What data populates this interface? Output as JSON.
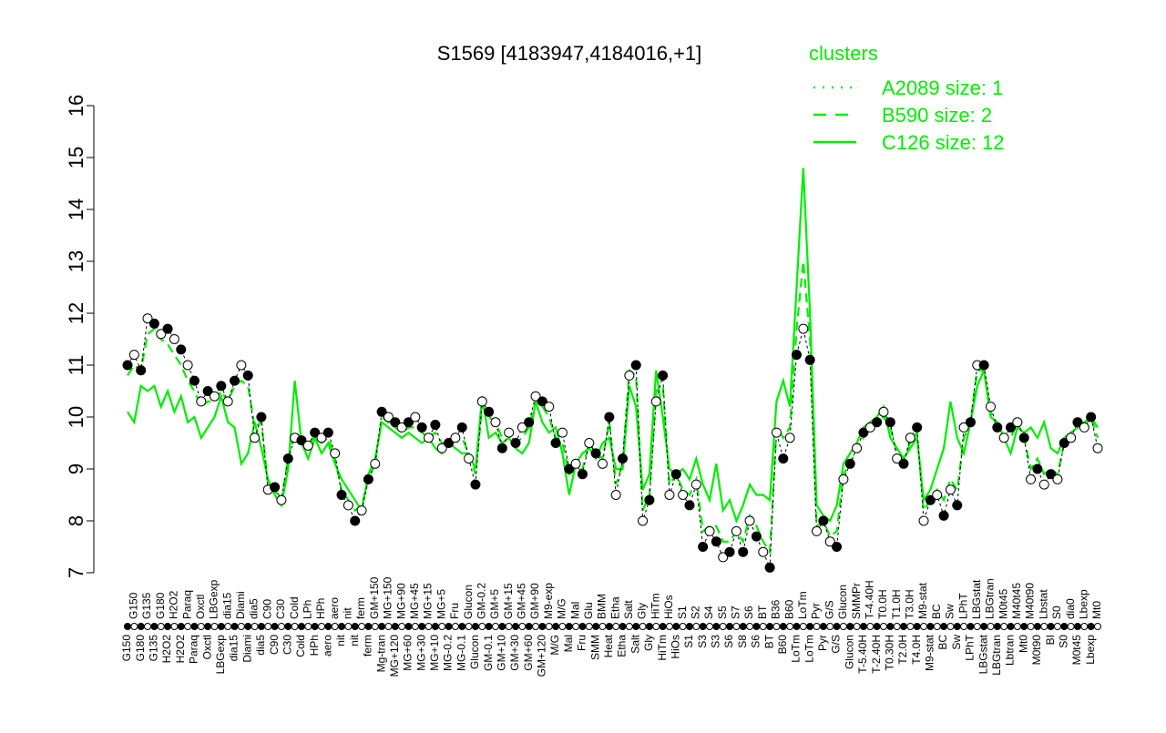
{
  "chart_data": {
    "type": "scatter",
    "title": "S1569 [4183947,4184016,+1]",
    "xlabel": "",
    "ylabel": "",
    "ylim": [
      7,
      16
    ],
    "yticks": [
      7,
      8,
      9,
      10,
      11,
      12,
      13,
      14,
      15,
      16
    ],
    "grid": false,
    "legend": {
      "placement": "top-right",
      "title": "clusters",
      "entries": [
        {
          "name": "A2089 size: 1",
          "style": "dotted"
        },
        {
          "name": "B590 size: 2",
          "style": "dashed"
        },
        {
          "name": "C126 size: 12",
          "style": "solid"
        }
      ]
    },
    "colors": {
      "points": "#000000",
      "clusters": "#00ee00"
    },
    "points": [
      {
        "label": "G150",
        "value": 11.0,
        "c126": 10.1,
        "b590": 10.8
      },
      {
        "label": "G150",
        "value": 11.2,
        "c126": 9.9,
        "b590": 11.0
      },
      {
        "label": "G180",
        "value": 10.9,
        "c126": 10.6,
        "b590": 10.9
      },
      {
        "label": "G135",
        "value": 11.9,
        "c126": 10.5,
        "b590": 11.6
      },
      {
        "label": "G135",
        "value": 11.8,
        "c126": 10.6,
        "b590": 11.7
      },
      {
        "label": "G180",
        "value": 11.6,
        "c126": 10.2,
        "b590": 11.5
      },
      {
        "label": "H2O2",
        "value": 11.7,
        "c126": 10.5,
        "b590": 11.4
      },
      {
        "label": "H2O2",
        "value": 11.5,
        "c126": 10.1,
        "b590": 11.2
      },
      {
        "label": "H2O2",
        "value": 11.3,
        "c126": 10.4,
        "b590": 11.0
      },
      {
        "label": "Paraq",
        "value": 11.0,
        "c126": 9.9,
        "b590": 10.7
      },
      {
        "label": "Paraq",
        "value": 10.7,
        "c126": 10.0,
        "b590": 10.5
      },
      {
        "label": "Oxctl",
        "value": 10.3,
        "c126": 9.6,
        "b590": 10.2
      },
      {
        "label": "Oxctl",
        "value": 10.5,
        "c126": 9.8,
        "b590": 10.3
      },
      {
        "label": "LBGexp",
        "value": 10.4,
        "c126": 10.0,
        "b590": 10.3
      },
      {
        "label": "LBGexp",
        "value": 10.6,
        "c126": 10.4,
        "b590": 10.5
      },
      {
        "label": "dia15",
        "value": 10.3,
        "c126": 9.9,
        "b590": 10.3
      },
      {
        "label": "dia15",
        "value": 10.7,
        "c126": 9.8,
        "b590": 10.6
      },
      {
        "label": "Diami",
        "value": 11.0,
        "c126": 9.1,
        "b590": 10.7
      },
      {
        "label": "Diami",
        "value": 10.8,
        "c126": 9.3,
        "b590": 10.6
      },
      {
        "label": "dia5",
        "value": 9.6,
        "c126": 9.9,
        "b590": 9.8
      },
      {
        "label": "dia5",
        "value": 10.0,
        "c126": 9.4,
        "b590": 9.9
      },
      {
        "label": "C90",
        "value": 8.6,
        "c126": 8.8,
        "b590": 8.7
      },
      {
        "label": "C90",
        "value": 8.65,
        "c126": 8.5,
        "b590": 8.6
      },
      {
        "label": "C30",
        "value": 8.4,
        "c126": 8.3,
        "b590": 8.4
      },
      {
        "label": "C30",
        "value": 9.2,
        "c126": 9.0,
        "b590": 9.2
      },
      {
        "label": "Cold",
        "value": 9.6,
        "c126": 10.7,
        "b590": 9.7
      },
      {
        "label": "Cold",
        "value": 9.55,
        "c126": 9.5,
        "b590": 9.6
      },
      {
        "label": "LPh",
        "value": 9.45,
        "c126": 9.2,
        "b590": 9.5
      },
      {
        "label": "HPh",
        "value": 9.7,
        "c126": 9.6,
        "b590": 9.6
      },
      {
        "label": "HPh",
        "value": 9.6,
        "c126": 9.3,
        "b590": 9.5
      },
      {
        "label": "aero",
        "value": 9.7,
        "c126": 9.5,
        "b590": 9.6
      },
      {
        "label": "aero",
        "value": 9.3,
        "c126": 9.1,
        "b590": 9.2
      },
      {
        "label": "nit",
        "value": 8.5,
        "c126": 8.8,
        "b590": 8.6
      },
      {
        "label": "nit",
        "value": 8.3,
        "c126": 8.6,
        "b590": 8.4
      },
      {
        "label": "nit",
        "value": 8.0,
        "c126": 8.4,
        "b590": 8.2
      },
      {
        "label": "ferm",
        "value": 8.2,
        "c126": 8.2,
        "b590": 8.3
      },
      {
        "label": "ferm",
        "value": 8.8,
        "c126": 8.9,
        "b590": 8.8
      },
      {
        "label": "GM+150",
        "value": 9.1,
        "c126": 9.2,
        "b590": 9.1
      },
      {
        "label": "Mg-tran",
        "value": 10.1,
        "c126": 9.9,
        "b590": 10.0
      },
      {
        "label": "MG+150",
        "value": 10.0,
        "c126": 9.8,
        "b590": 9.9
      },
      {
        "label": "MG+120",
        "value": 9.9,
        "c126": 9.7,
        "b590": 9.8
      },
      {
        "label": "MG+90",
        "value": 9.8,
        "c126": 9.6,
        "b590": 9.7
      },
      {
        "label": "MG+60",
        "value": 9.9,
        "c126": 9.7,
        "b590": 9.8
      },
      {
        "label": "MG+45",
        "value": 10.0,
        "c126": 9.6,
        "b590": 9.8
      },
      {
        "label": "MG+30",
        "value": 9.8,
        "c126": 9.5,
        "b590": 9.7
      },
      {
        "label": "MG+15",
        "value": 9.6,
        "c126": 9.6,
        "b590": 9.6
      },
      {
        "label": "MG+10",
        "value": 9.85,
        "c126": 9.4,
        "b590": 9.7
      },
      {
        "label": "MG+5",
        "value": 9.4,
        "c126": 9.3,
        "b590": 9.5
      },
      {
        "label": "MG-0.2",
        "value": 9.5,
        "c126": 9.5,
        "b590": 9.5
      },
      {
        "label": "Fru",
        "value": 9.6,
        "c126": 9.4,
        "b590": 9.6
      },
      {
        "label": "MG-0.1",
        "value": 9.8,
        "c126": 9.3,
        "b590": 9.6
      },
      {
        "label": "Glucon",
        "value": 9.2,
        "c126": 9.3,
        "b590": 9.3
      },
      {
        "label": "Glucon",
        "value": 8.7,
        "c126": 9.0,
        "b590": 8.9
      },
      {
        "label": "GM-0.2",
        "value": 10.3,
        "c126": 10.4,
        "b590": 10.2
      },
      {
        "label": "GM-0.1",
        "value": 10.1,
        "c126": 9.6,
        "b590": 10.0
      },
      {
        "label": "GM+5",
        "value": 9.9,
        "c126": 9.7,
        "b590": 9.9
      },
      {
        "label": "GM+10",
        "value": 9.4,
        "c126": 9.5,
        "b590": 9.6
      },
      {
        "label": "GM+15",
        "value": 9.7,
        "c126": 9.6,
        "b590": 9.7
      },
      {
        "label": "GM+30",
        "value": 9.5,
        "c126": 9.4,
        "b590": 9.5
      },
      {
        "label": "GM+45",
        "value": 9.8,
        "c126": 9.3,
        "b590": 9.6
      },
      {
        "label": "GM+60",
        "value": 9.9,
        "c126": 9.5,
        "b590": 9.8
      },
      {
        "label": "GM+90",
        "value": 10.4,
        "c126": 10.3,
        "b590": 10.3
      },
      {
        "label": "GM+120",
        "value": 10.3,
        "c126": 9.9,
        "b590": 10.2
      },
      {
        "label": "M9-exp",
        "value": 10.2,
        "c126": 9.7,
        "b590": 10.0
      },
      {
        "label": "M/G",
        "value": 9.5,
        "c126": 9.8,
        "b590": 9.6
      },
      {
        "label": "M/G",
        "value": 9.7,
        "c126": 9.3,
        "b590": 9.5
      },
      {
        "label": "Mal",
        "value": 9.0,
        "c126": 8.5,
        "b590": 8.9
      },
      {
        "label": "Mal",
        "value": 9.1,
        "c126": 9.1,
        "b590": 9.0
      },
      {
        "label": "Fru",
        "value": 8.9,
        "c126": 9.3,
        "b590": 9.0
      },
      {
        "label": "Glu",
        "value": 9.5,
        "c126": 9.4,
        "b590": 9.5
      },
      {
        "label": "SMM",
        "value": 9.3,
        "c126": 9.2,
        "b590": 9.3
      },
      {
        "label": "BMM",
        "value": 9.1,
        "c126": 9.5,
        "b590": 9.2
      },
      {
        "label": "Heat",
        "value": 10.0,
        "c126": 9.6,
        "b590": 9.9
      },
      {
        "label": "Etha",
        "value": 8.5,
        "c126": 9.0,
        "b590": 8.7
      },
      {
        "label": "Etha",
        "value": 9.2,
        "c126": 9.0,
        "b590": 9.1
      },
      {
        "label": "Salt",
        "value": 10.8,
        "c126": 10.6,
        "b590": 10.9
      },
      {
        "label": "Salt",
        "value": 11.0,
        "c126": 10.2,
        "b590": 10.8
      },
      {
        "label": "Gly",
        "value": 8.0,
        "c126": 8.6,
        "b590": 8.2
      },
      {
        "label": "Gly",
        "value": 8.4,
        "c126": 8.9,
        "b590": 8.5
      },
      {
        "label": "HiTm",
        "value": 10.3,
        "c126": 10.9,
        "b590": 10.5
      },
      {
        "label": "HiTm",
        "value": 10.8,
        "c126": 10.0,
        "b590": 10.6
      },
      {
        "label": "HiOs",
        "value": 8.5,
        "c126": 9.0,
        "b590": 8.7
      },
      {
        "label": "HiOs",
        "value": 8.9,
        "c126": 8.9,
        "b590": 8.9
      },
      {
        "label": "S1",
        "value": 8.5,
        "c126": 9.0,
        "b590": 8.6
      },
      {
        "label": "S1",
        "value": 8.3,
        "c126": 8.8,
        "b590": 8.5
      },
      {
        "label": "S2",
        "value": 8.7,
        "c126": 9.2,
        "b590": 8.8
      },
      {
        "label": "S3",
        "value": 7.5,
        "c126": 8.7,
        "b590": 7.8
      },
      {
        "label": "S4",
        "value": 7.8,
        "c126": 8.4,
        "b590": 7.9
      },
      {
        "label": "S3",
        "value": 7.6,
        "c126": 9.1,
        "b590": 7.9
      },
      {
        "label": "S5",
        "value": 7.3,
        "c126": 8.2,
        "b590": 7.6
      },
      {
        "label": "S6",
        "value": 7.4,
        "c126": 8.4,
        "b590": 7.6
      },
      {
        "label": "S7",
        "value": 7.8,
        "c126": 8.0,
        "b590": 7.8
      },
      {
        "label": "S8",
        "value": 7.4,
        "c126": 8.3,
        "b590": 7.6
      },
      {
        "label": "S6",
        "value": 8.0,
        "c126": 8.7,
        "b590": 8.1
      },
      {
        "label": "S6",
        "value": 7.7,
        "c126": 8.5,
        "b590": 7.9
      },
      {
        "label": "BT",
        "value": 7.4,
        "c126": 8.5,
        "b590": 7.6
      },
      {
        "label": "BT",
        "value": 7.1,
        "c126": 8.4,
        "b590": 7.4
      },
      {
        "label": "B36",
        "value": 9.7,
        "c126": 10.3,
        "b590": 9.8
      },
      {
        "label": "B60",
        "value": 9.2,
        "c126": 10.7,
        "b590": 9.6
      },
      {
        "label": "B60",
        "value": 9.6,
        "c126": 10.2,
        "b590": 9.8
      },
      {
        "label": "LoTm",
        "value": 11.2,
        "c126": 12.5,
        "b590": 11.7
      },
      {
        "label": "LoTm",
        "value": 11.7,
        "c126": 14.8,
        "b590": 13.0
      },
      {
        "label": "LoTm",
        "value": 11.1,
        "c126": 12.0,
        "b590": 11.5
      },
      {
        "label": "Pyr",
        "value": 7.8,
        "c126": 8.3,
        "b590": 7.9
      },
      {
        "label": "Pyr",
        "value": 8.0,
        "c126": 8.1,
        "b590": 8.0
      },
      {
        "label": "G/S",
        "value": 7.6,
        "c126": 8.0,
        "b590": 7.7
      },
      {
        "label": "G/S",
        "value": 7.5,
        "c126": 8.3,
        "b590": 7.8
      },
      {
        "label": "Glucon",
        "value": 8.8,
        "c126": 9.1,
        "b590": 8.9
      },
      {
        "label": "Glucon",
        "value": 9.1,
        "c126": 9.3,
        "b590": 9.1
      },
      {
        "label": "SMMPr",
        "value": 9.4,
        "c126": 9.5,
        "b590": 9.4
      },
      {
        "label": "T-5.40H",
        "value": 9.7,
        "c126": 9.8,
        "b590": 9.6
      },
      {
        "label": "T-4.40H",
        "value": 9.8,
        "c126": 9.9,
        "b590": 9.8
      },
      {
        "label": "T-2.40H",
        "value": 9.9,
        "c126": 10.0,
        "b590": 9.9
      },
      {
        "label": "T0.0H",
        "value": 10.1,
        "c126": 10.2,
        "b590": 10.0
      },
      {
        "label": "T0.30H",
        "value": 9.9,
        "c126": 9.6,
        "b590": 9.8
      },
      {
        "label": "T1.0H",
        "value": 9.2,
        "c126": 9.4,
        "b590": 9.3
      },
      {
        "label": "T2.0H",
        "value": 9.1,
        "c126": 9.2,
        "b590": 9.2
      },
      {
        "label": "T3.0H",
        "value": 9.6,
        "c126": 9.4,
        "b590": 9.5
      },
      {
        "label": "T4.0H",
        "value": 9.8,
        "c126": 9.6,
        "b590": 9.7
      },
      {
        "label": "M9-stat",
        "value": 8.0,
        "c126": 8.4,
        "b590": 8.2
      },
      {
        "label": "M9-stat",
        "value": 8.4,
        "c126": 8.6,
        "b590": 8.4
      },
      {
        "label": "BC",
        "value": 8.5,
        "c126": 9.0,
        "b590": 8.6
      },
      {
        "label": "BC",
        "value": 8.1,
        "c126": 9.4,
        "b590": 8.4
      },
      {
        "label": "Sw",
        "value": 8.6,
        "c126": 10.3,
        "b590": 8.8
      },
      {
        "label": "Sw",
        "value": 8.3,
        "c126": 9.6,
        "b590": 8.6
      },
      {
        "label": "LPhT",
        "value": 9.8,
        "c126": 9.3,
        "b590": 9.6
      },
      {
        "label": "LPhT",
        "value": 9.9,
        "c126": 9.9,
        "b590": 9.9
      },
      {
        "label": "LBGstat",
        "value": 11.0,
        "c126": 10.6,
        "b590": 10.9
      },
      {
        "label": "LBGstat",
        "value": 11.0,
        "c126": 10.9,
        "b590": 10.9
      },
      {
        "label": "LBGtran",
        "value": 10.2,
        "c126": 10.0,
        "b590": 10.1
      },
      {
        "label": "LBGtran",
        "value": 9.8,
        "c126": 9.9,
        "b590": 9.8
      },
      {
        "label": "M0t45",
        "value": 9.6,
        "c126": 9.6,
        "b590": 9.6
      },
      {
        "label": "Lbtran",
        "value": 9.8,
        "c126": 9.3,
        "b590": 9.6
      },
      {
        "label": "M40t45",
        "value": 9.9,
        "c126": 9.8,
        "b590": 9.9
      },
      {
        "label": "Mt0",
        "value": 9.6,
        "c126": 9.7,
        "b590": 9.6
      },
      {
        "label": "M40t90",
        "value": 8.8,
        "c126": 9.8,
        "b590": 9.0
      },
      {
        "label": "M0t90",
        "value": 9.0,
        "c126": 9.6,
        "b590": 9.2
      },
      {
        "label": "Lbstat",
        "value": 8.7,
        "c126": 9.9,
        "b590": 8.9
      },
      {
        "label": "BI",
        "value": 8.9,
        "c126": 9.4,
        "b590": 9.0
      },
      {
        "label": "S0",
        "value": 8.8,
        "c126": 9.3,
        "b590": 8.9
      },
      {
        "label": "S0",
        "value": 9.5,
        "c126": 9.6,
        "b590": 9.5
      },
      {
        "label": "dia0",
        "value": 9.6,
        "c126": 9.7,
        "b590": 9.7
      },
      {
        "label": "M0t45",
        "value": 9.9,
        "c126": 9.8,
        "b590": 9.9
      },
      {
        "label": "Lbexp",
        "value": 9.8,
        "c126": 9.9,
        "b590": 9.8
      },
      {
        "label": "Lbexp",
        "value": 10.0,
        "c126": 10.0,
        "b590": 10.0
      },
      {
        "label": "Mt0",
        "value": 9.4,
        "c126": 9.8,
        "b590": 9.6
      }
    ]
  }
}
